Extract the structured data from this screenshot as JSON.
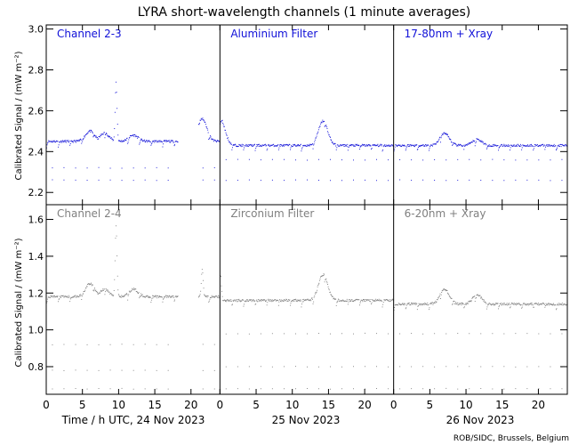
{
  "title": "LYRA short-wavelength channels (1 minute averages)",
  "ylabel": "Calibrated Signal / (mW m⁻²)",
  "credit": "ROB/SIDC, Brussels, Belgium",
  "x_axis": {
    "label_first": "Time / h UTC, 24 Nov 2023",
    "day_labels": [
      "25 Nov 2023",
      "26 Nov 2023"
    ],
    "tick_labels": [
      "0",
      "5",
      "10",
      "15",
      "20"
    ]
  },
  "colors": {
    "top": "#1010d8",
    "bottom": "#808080",
    "axes": "#000000"
  },
  "chart_data": [
    {
      "type": "scatter",
      "row": "top",
      "ylim": [
        2.14,
        3.02
      ],
      "yticks": [
        "2.2",
        "2.4",
        "2.6",
        "2.8",
        "3.0"
      ],
      "xlim_hours": [
        0,
        72
      ],
      "panels": [
        {
          "name": "Channel 2-3",
          "day": "24 Nov 2023",
          "baseline": 2.45,
          "bumps": [
            [
              6,
              2.5
            ],
            [
              8,
              2.49
            ],
            [
              9.6,
              2.74
            ],
            [
              12,
              2.48
            ],
            [
              21.5,
              2.56
            ]
          ],
          "low_levels": [
            2.26,
            2.32
          ],
          "offline_hours": [
            [
              18.2,
              21.0
            ]
          ]
        },
        {
          "name": "Aluminium Filter",
          "day": "25 Nov 2023",
          "baseline": 2.43,
          "bumps": [
            [
              0,
              2.56
            ],
            [
              14.2,
              2.55
            ]
          ],
          "low_levels": [
            2.26,
            2.36
          ],
          "offline_hours": []
        },
        {
          "name": "17-80nm + Xray",
          "day": "26 Nov 2023",
          "baseline": 2.43,
          "bumps": [
            [
              7,
              2.49
            ],
            [
              11.5,
              2.46
            ]
          ],
          "low_levels": [
            2.26,
            2.36
          ],
          "offline_hours": []
        }
      ]
    },
    {
      "type": "scatter",
      "row": "bottom",
      "ylim": [
        0.65,
        1.68
      ],
      "yticks": [
        "0.8",
        "1.0",
        "1.2",
        "1.4",
        "1.6"
      ],
      "xlim_hours": [
        0,
        72
      ],
      "panels": [
        {
          "name": "Channel 2-4",
          "day": "24 Nov 2023",
          "baseline": 1.18,
          "bumps": [
            [
              6,
              1.25
            ],
            [
              8,
              1.22
            ],
            [
              9.6,
              1.57
            ],
            [
              12,
              1.22
            ],
            [
              21.5,
              1.33
            ]
          ],
          "low_levels": [
            0.68,
            0.78,
            0.92
          ],
          "offline_hours": [
            [
              18.2,
              21.0
            ]
          ]
        },
        {
          "name": "Zirconium Filter",
          "day": "25 Nov 2023",
          "baseline": 1.16,
          "bumps": [
            [
              0,
              1.33
            ],
            [
              14.2,
              1.3
            ]
          ],
          "low_levels": [
            0.68,
            0.8,
            0.98
          ],
          "offline_hours": []
        },
        {
          "name": "6-20nm + Xray",
          "day": "26 Nov 2023",
          "baseline": 1.14,
          "bumps": [
            [
              7,
              1.22
            ],
            [
              11.5,
              1.19
            ]
          ],
          "low_levels": [
            0.68,
            0.8,
            0.98
          ],
          "offline_hours": []
        }
      ]
    }
  ]
}
